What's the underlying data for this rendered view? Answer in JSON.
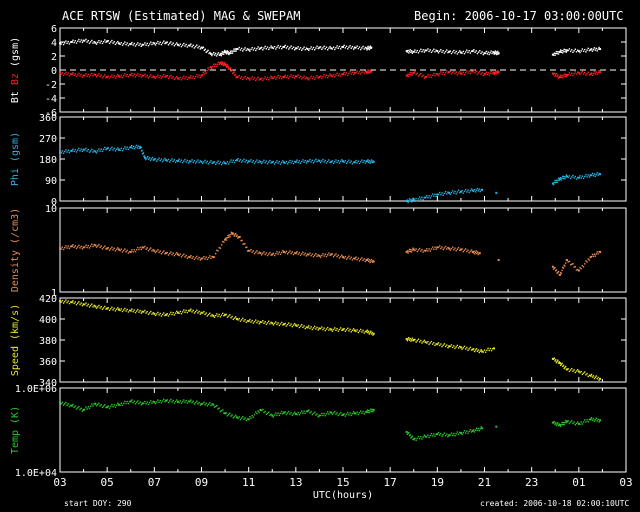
{
  "header": {
    "title": "ACE RTSW (Estimated) MAG & SWEPAM",
    "begin": "Begin: 2006-10-17 03:00:00UTC"
  },
  "footer": {
    "start_doy": "start DOY: 290",
    "created": "created: 2006-10-18 02:00:10UTC"
  },
  "chart_data": [
    {
      "type": "scatter",
      "panel": "mag",
      "ylabel_parts": [
        "Bt",
        "Bz",
        "(gsm)"
      ],
      "ylim": [
        -6,
        6
      ],
      "yticks": [
        6,
        4,
        2,
        0,
        -2,
        -4,
        -6
      ],
      "zero_line": "dashed",
      "series": [
        {
          "name": "Bt",
          "color": "#ffffff",
          "x": [
            3.0,
            3.5,
            4.0,
            4.5,
            5.0,
            5.5,
            6.0,
            6.5,
            7.0,
            7.5,
            8.0,
            8.5,
            9.0,
            9.4,
            9.8,
            10.0,
            10.2,
            10.5,
            11.0,
            11.5,
            12.0,
            12.5,
            13.0,
            13.5,
            14.0,
            14.5,
            15.0,
            15.5,
            16.0,
            16.2,
            17.7,
            18.0,
            18.5,
            19.0,
            19.5,
            20.0,
            20.5,
            21.0,
            21.4,
            21.6,
            23.9,
            24.2,
            24.5,
            25.0,
            25.5,
            25.9
          ],
          "y": [
            3.8,
            4.0,
            4.2,
            3.9,
            4.1,
            3.8,
            3.7,
            3.6,
            3.8,
            3.9,
            3.6,
            3.5,
            3.2,
            2.3,
            2.2,
            2.6,
            2.4,
            3.0,
            2.9,
            3.1,
            3.2,
            3.3,
            3.1,
            3.0,
            3.2,
            3.1,
            3.3,
            3.2,
            3.1,
            3.2,
            2.7,
            2.6,
            2.8,
            2.7,
            2.6,
            2.5,
            2.7,
            2.4,
            2.5,
            2.4,
            2.2,
            2.6,
            2.8,
            2.7,
            2.9,
            3.0
          ]
        },
        {
          "name": "Bz",
          "color": "#ff2020",
          "x": [
            3.0,
            3.5,
            4.0,
            4.5,
            5.0,
            5.5,
            6.0,
            6.5,
            7.0,
            7.5,
            8.0,
            8.5,
            9.0,
            9.4,
            9.8,
            10.0,
            10.2,
            10.5,
            11.0,
            11.5,
            12.0,
            12.5,
            13.0,
            13.5,
            14.0,
            14.5,
            15.0,
            15.5,
            16.0,
            16.2,
            17.7,
            18.0,
            18.5,
            19.0,
            19.5,
            20.0,
            20.5,
            21.0,
            21.4,
            21.6,
            23.9,
            24.2,
            24.5,
            25.0,
            25.5,
            25.9
          ],
          "y": [
            -0.5,
            -0.6,
            -0.8,
            -0.7,
            -1.0,
            -0.9,
            -0.7,
            -0.8,
            -1.0,
            -0.9,
            -1.2,
            -1.1,
            -0.8,
            0.4,
            1.0,
            0.8,
            0.2,
            -1.0,
            -1.2,
            -1.3,
            -1.1,
            -1.0,
            -0.9,
            -1.2,
            -1.0,
            -0.8,
            -0.6,
            -0.4,
            -0.3,
            -0.2,
            -0.8,
            -0.4,
            -1.0,
            -0.6,
            -0.3,
            -0.5,
            -0.2,
            -0.6,
            -0.4,
            -0.3,
            -0.5,
            -1.0,
            -0.7,
            -0.4,
            -0.6,
            -0.3
          ]
        }
      ]
    },
    {
      "type": "scatter",
      "panel": "phi",
      "ylabel": "Phi (gsm)",
      "ylim": [
        0,
        360
      ],
      "yticks": [
        360,
        270,
        180,
        90,
        0
      ],
      "series": [
        {
          "name": "Phi",
          "color": "#28b4e6",
          "x": [
            3.0,
            3.5,
            4.0,
            4.5,
            5.0,
            5.5,
            6.0,
            6.4,
            6.6,
            7.0,
            7.5,
            8.0,
            8.5,
            9.0,
            9.5,
            10.0,
            10.5,
            11.0,
            11.5,
            12.0,
            12.5,
            13.0,
            13.5,
            14.0,
            14.5,
            15.0,
            15.5,
            16.0,
            16.3,
            17.7,
            18.0,
            18.5,
            19.0,
            19.5,
            20.0,
            20.5,
            20.9,
            21.5,
            23.9,
            24.2,
            24.5,
            25.0,
            25.5,
            25.9
          ],
          "y": [
            210,
            215,
            220,
            212,
            225,
            220,
            230,
            232,
            185,
            178,
            175,
            172,
            170,
            168,
            165,
            162,
            175,
            170,
            168,
            166,
            165,
            168,
            170,
            172,
            168,
            170,
            166,
            170,
            168,
            0,
            5,
            15,
            28,
            35,
            40,
            45,
            48,
            35,
            75,
            95,
            105,
            100,
            110,
            115
          ]
        }
      ]
    },
    {
      "type": "scatter",
      "panel": "density",
      "ylabel": "Density (/cm3)",
      "yscale": "log",
      "ylim": [
        1,
        10
      ],
      "yticks": [
        10,
        1
      ],
      "series": [
        {
          "name": "Density",
          "color": "#e68c50",
          "x": [
            3.0,
            3.5,
            4.0,
            4.5,
            5.0,
            5.5,
            6.0,
            6.5,
            7.0,
            7.5,
            8.0,
            8.5,
            9.0,
            9.5,
            10.0,
            10.3,
            10.6,
            11.0,
            11.5,
            12.0,
            12.5,
            13.0,
            13.5,
            14.0,
            14.5,
            15.0,
            15.5,
            16.0,
            16.3,
            17.7,
            18.0,
            18.5,
            19.0,
            19.5,
            20.0,
            20.5,
            20.8,
            21.6,
            23.9,
            24.2,
            24.5,
            25.0,
            25.5,
            25.9
          ],
          "y": [
            3.3,
            3.5,
            3.4,
            3.6,
            3.3,
            3.2,
            3.0,
            3.4,
            3.1,
            2.9,
            2.8,
            2.6,
            2.5,
            2.6,
            4.2,
            5.0,
            4.5,
            3.1,
            2.9,
            2.8,
            3.0,
            2.9,
            2.8,
            2.7,
            2.8,
            2.6,
            2.5,
            2.4,
            2.3,
            3.0,
            3.2,
            3.1,
            3.4,
            3.3,
            3.2,
            3.0,
            2.9,
            2.4,
            2.0,
            1.6,
            2.4,
            1.8,
            2.6,
            3.0
          ]
        }
      ]
    },
    {
      "type": "scatter",
      "panel": "speed",
      "ylabel": "Speed (km/s)",
      "ylim": [
        340,
        420
      ],
      "yticks": [
        420,
        400,
        380,
        360,
        340
      ],
      "series": [
        {
          "name": "Speed",
          "color": "#e6e628",
          "x": [
            3.0,
            3.5,
            4.0,
            4.5,
            5.0,
            5.5,
            6.0,
            6.5,
            7.0,
            7.5,
            8.0,
            8.5,
            9.0,
            9.5,
            10.0,
            10.5,
            11.0,
            11.5,
            12.0,
            12.5,
            13.0,
            13.5,
            14.0,
            14.5,
            15.0,
            15.5,
            16.0,
            16.3,
            17.7,
            18.0,
            18.5,
            19.0,
            19.5,
            20.0,
            20.5,
            20.9,
            21.4,
            23.9,
            24.2,
            24.5,
            25.0,
            25.5,
            25.9
          ],
          "y": [
            417,
            416,
            414,
            412,
            410,
            409,
            408,
            407,
            405,
            404,
            406,
            408,
            406,
            403,
            404,
            400,
            398,
            397,
            396,
            395,
            394,
            392,
            391,
            390,
            390,
            389,
            388,
            386,
            381,
            380,
            378,
            376,
            374,
            373,
            371,
            369,
            372,
            362,
            358,
            352,
            350,
            346,
            343
          ]
        }
      ]
    },
    {
      "type": "scatter",
      "panel": "temp",
      "ylabel": "Temp (K)",
      "yscale": "log",
      "ylim": [
        10000,
        1000000
      ],
      "yticks": [
        "1.0E+06",
        "1.0E+04"
      ],
      "series": [
        {
          "name": "Temp",
          "color": "#28c828",
          "x": [
            3.0,
            3.5,
            4.0,
            4.5,
            5.0,
            5.5,
            6.0,
            6.5,
            7.0,
            7.5,
            8.0,
            8.5,
            9.0,
            9.5,
            10.0,
            10.5,
            11.0,
            11.5,
            12.0,
            12.5,
            13.0,
            13.5,
            14.0,
            14.5,
            15.0,
            15.5,
            16.0,
            16.3,
            17.7,
            18.0,
            18.5,
            19.0,
            19.5,
            20.0,
            20.5,
            20.9,
            21.5,
            23.9,
            24.2,
            24.5,
            25.0,
            25.5,
            25.9
          ],
          "y": [
            450000,
            380000,
            300000,
            420000,
            350000,
            400000,
            480000,
            430000,
            460000,
            500000,
            470000,
            480000,
            420000,
            400000,
            250000,
            200000,
            180000,
            300000,
            220000,
            260000,
            240000,
            280000,
            220000,
            260000,
            230000,
            250000,
            270000,
            300000,
            90000,
            60000,
            70000,
            80000,
            75000,
            85000,
            95000,
            110000,
            120000,
            150000,
            130000,
            160000,
            140000,
            180000,
            170000
          ]
        }
      ]
    }
  ],
  "x_axis": {
    "label": "UTC(hours)",
    "xlim": [
      3,
      27
    ],
    "tick_labels": [
      "03",
      "05",
      "07",
      "09",
      "11",
      "13",
      "15",
      "17",
      "19",
      "21",
      "23",
      "01",
      "03"
    ]
  }
}
